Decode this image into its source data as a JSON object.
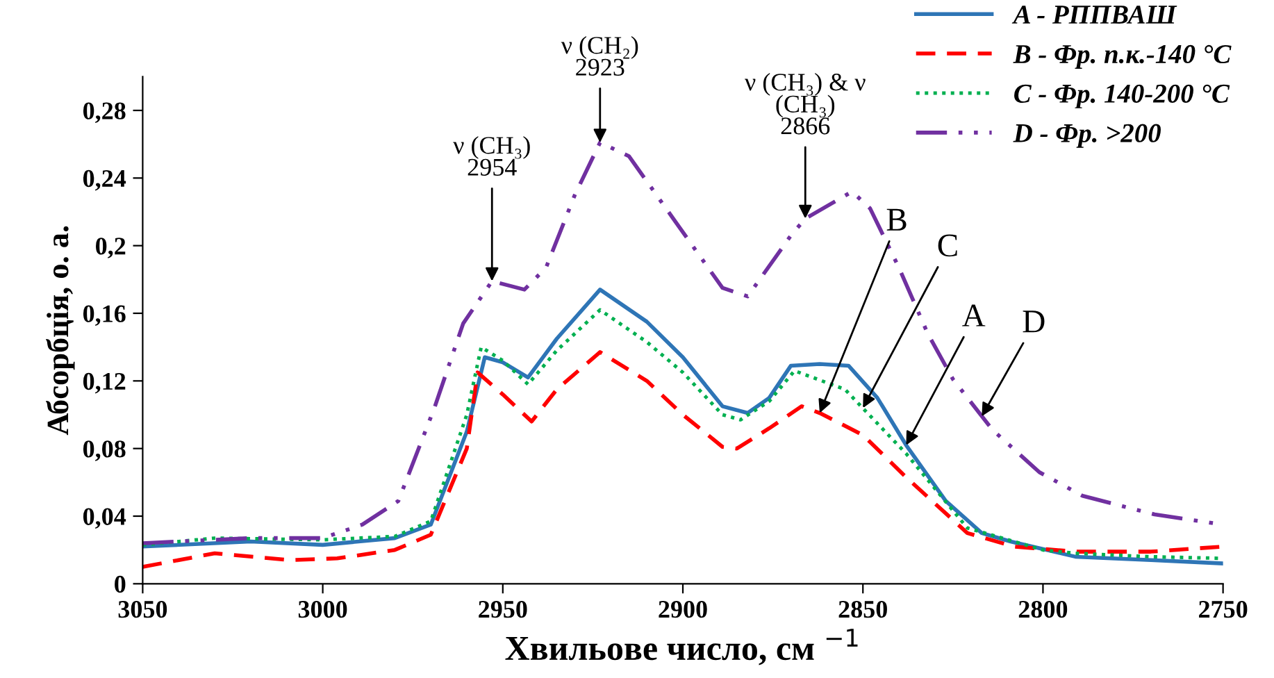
{
  "chart_data": {
    "type": "line",
    "xlabel": "Хвильове число, см $^{−1}$",
    "ylabel": "Абсорбція, о. а.",
    "xlim": [
      3050,
      2750
    ],
    "xticks": [
      3050,
      3000,
      2950,
      2900,
      2850,
      2800,
      2750
    ],
    "ylim": [
      0,
      0.3
    ],
    "yticks": [
      {
        "value": 0,
        "label": "0"
      },
      {
        "value": 0.04,
        "label": "0,04"
      },
      {
        "value": 0.08,
        "label": "0,08"
      },
      {
        "value": 0.12,
        "label": "0,12"
      },
      {
        "value": 0.16,
        "label": "0,16"
      },
      {
        "value": 0.2,
        "label": "0,2"
      },
      {
        "value": 0.24,
        "label": "0,24"
      },
      {
        "value": 0.28,
        "label": "0,28"
      }
    ],
    "grid": false,
    "legend": "top right",
    "marker": "none",
    "series": [
      {
        "name": "A - РППВАШ",
        "color": "#2e75b6",
        "line_style": "solid",
        "x": [
          3050,
          3020,
          3000,
          2980,
          2970,
          2960,
          2955,
          2950,
          2943,
          2935,
          2923,
          2910,
          2900,
          2889,
          2882,
          2876,
          2870,
          2862,
          2854,
          2846,
          2838,
          2827,
          2817,
          2809,
          2791,
          2770,
          2750
        ],
        "values": [
          0.022,
          0.025,
          0.023,
          0.027,
          0.035,
          0.09,
          0.134,
          0.131,
          0.122,
          0.145,
          0.174,
          0.155,
          0.134,
          0.105,
          0.101,
          0.11,
          0.129,
          0.13,
          0.129,
          0.11,
          0.082,
          0.049,
          0.03,
          0.025,
          0.016,
          0.014,
          0.012
        ]
      },
      {
        "name": "B - Фр. п.к.-140 °C",
        "color": "#ff0000",
        "line_style": "dashed",
        "x": [
          3050,
          3030,
          3009,
          2996,
          2980,
          2970,
          2960,
          2957,
          2950,
          2942,
          2935,
          2923,
          2910,
          2900,
          2889,
          2885,
          2876,
          2867,
          2862,
          2850,
          2838,
          2821,
          2808,
          2791,
          2770,
          2750
        ],
        "values": [
          0.01,
          0.018,
          0.014,
          0.015,
          0.02,
          0.029,
          0.08,
          0.125,
          0.112,
          0.096,
          0.115,
          0.137,
          0.12,
          0.1,
          0.081,
          0.08,
          0.092,
          0.105,
          0.101,
          0.088,
          0.063,
          0.03,
          0.022,
          0.019,
          0.019,
          0.022
        ]
      },
      {
        "name": "C - Фр. 140-200 °C",
        "color": "#00b050",
        "line_style": "dotted",
        "x": [
          3050,
          3030,
          3000,
          2980,
          2970,
          2960,
          2956,
          2950,
          2943,
          2935,
          2923,
          2910,
          2900,
          2889,
          2884,
          2876,
          2869,
          2855,
          2838,
          2821,
          2800,
          2791,
          2770,
          2750
        ],
        "values": [
          0.023,
          0.027,
          0.026,
          0.028,
          0.037,
          0.1,
          0.14,
          0.132,
          0.118,
          0.138,
          0.162,
          0.143,
          0.125,
          0.1,
          0.097,
          0.108,
          0.126,
          0.115,
          0.077,
          0.033,
          0.02,
          0.018,
          0.016,
          0.015
        ]
      },
      {
        "name": "D - Фр. >200",
        "color": "#7030a0",
        "line_style": "dashdotdot",
        "x": [
          3050,
          3020,
          3000,
          2989,
          2979,
          2969,
          2961,
          2953,
          2944,
          2938,
          2930,
          2923,
          2915,
          2902,
          2889,
          2882,
          2870,
          2866,
          2853,
          2848,
          2840,
          2832,
          2825,
          2814,
          2801,
          2789,
          2769,
          2750
        ],
        "values": [
          0.024,
          0.027,
          0.027,
          0.035,
          0.049,
          0.104,
          0.154,
          0.179,
          0.174,
          0.187,
          0.23,
          0.261,
          0.253,
          0.214,
          0.175,
          0.17,
          0.206,
          0.216,
          0.232,
          0.222,
          0.187,
          0.148,
          0.121,
          0.091,
          0.066,
          0.052,
          0.041,
          0.035
        ]
      }
    ],
    "annotations": [
      {
        "text": "ν (CH₃)\n2954",
        "x": 2953,
        "y": 0.179
      },
      {
        "text": "ν (CH₂)\n2923",
        "x": 2923,
        "y": 0.261
      },
      {
        "text": "ν (CH₃) & ν\n(CH₃)\n2866",
        "x": 2866,
        "y": 0.216
      },
      {
        "text": "B",
        "x": 2862,
        "y": 0.101
      },
      {
        "text": "C",
        "x": 2850,
        "y": 0.104
      },
      {
        "text": "A",
        "x": 2838,
        "y": 0.082
      },
      {
        "text": "D",
        "x": 2817,
        "y": 0.099
      }
    ]
  }
}
